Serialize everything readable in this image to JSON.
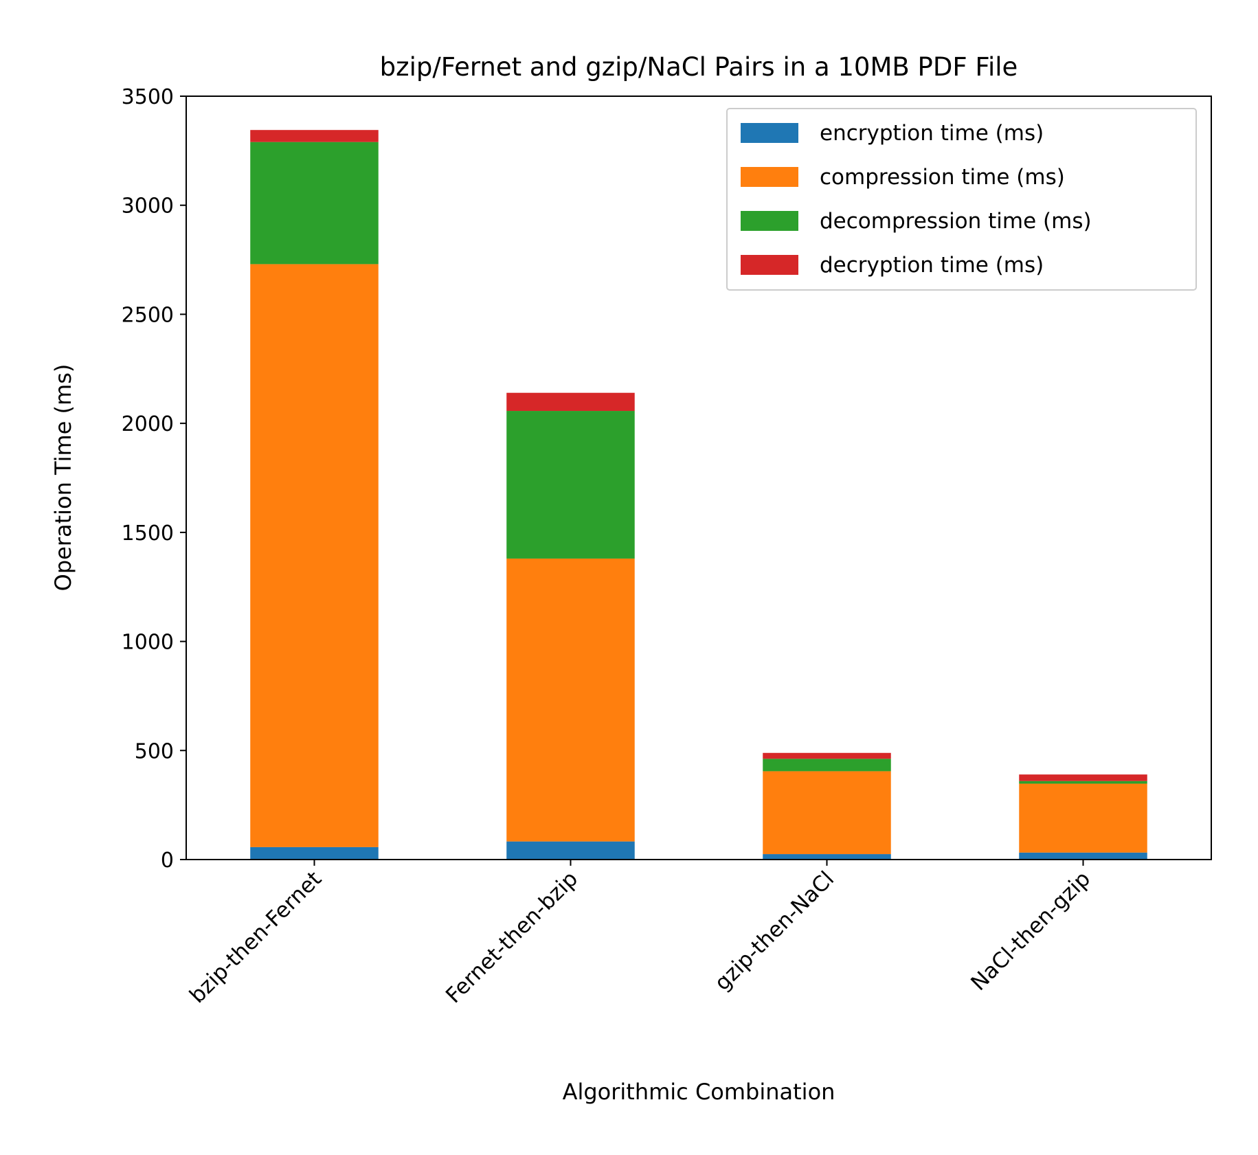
{
  "chart_data": {
    "type": "bar",
    "stacked": true,
    "title": "bzip/Fernet and gzip/NaCl Pairs in a 10MB PDF File",
    "xlabel": "Algorithmic Combination",
    "ylabel": "Operation Time (ms)",
    "ylim": [
      0,
      3500
    ],
    "yticks": [
      0,
      500,
      1000,
      1500,
      2000,
      2500,
      3000,
      3500
    ],
    "ytick_labels": [
      "0",
      "500",
      "1000",
      "1500",
      "2000",
      "2500",
      "3000",
      "3500"
    ],
    "categories": [
      "bzip-then-Fernet",
      "Fernet-then-bzip",
      "gzip-then-NaCl",
      "NaCl-then-gzip"
    ],
    "grid": false,
    "legend_position": "top-right",
    "series": [
      {
        "name": "encryption time (ms)",
        "color": "#1f77b4",
        "values": [
          57,
          83,
          25,
          32
        ]
      },
      {
        "name": "compression time (ms)",
        "color": "#ff7f0e",
        "values": [
          2673,
          1297,
          380,
          316
        ]
      },
      {
        "name": "decompression time (ms)",
        "color": "#2ca02c",
        "values": [
          560,
          677,
          57,
          12
        ]
      },
      {
        "name": "decryption time (ms)",
        "color": "#d62728",
        "values": [
          55,
          83,
          27,
          30
        ]
      }
    ]
  }
}
